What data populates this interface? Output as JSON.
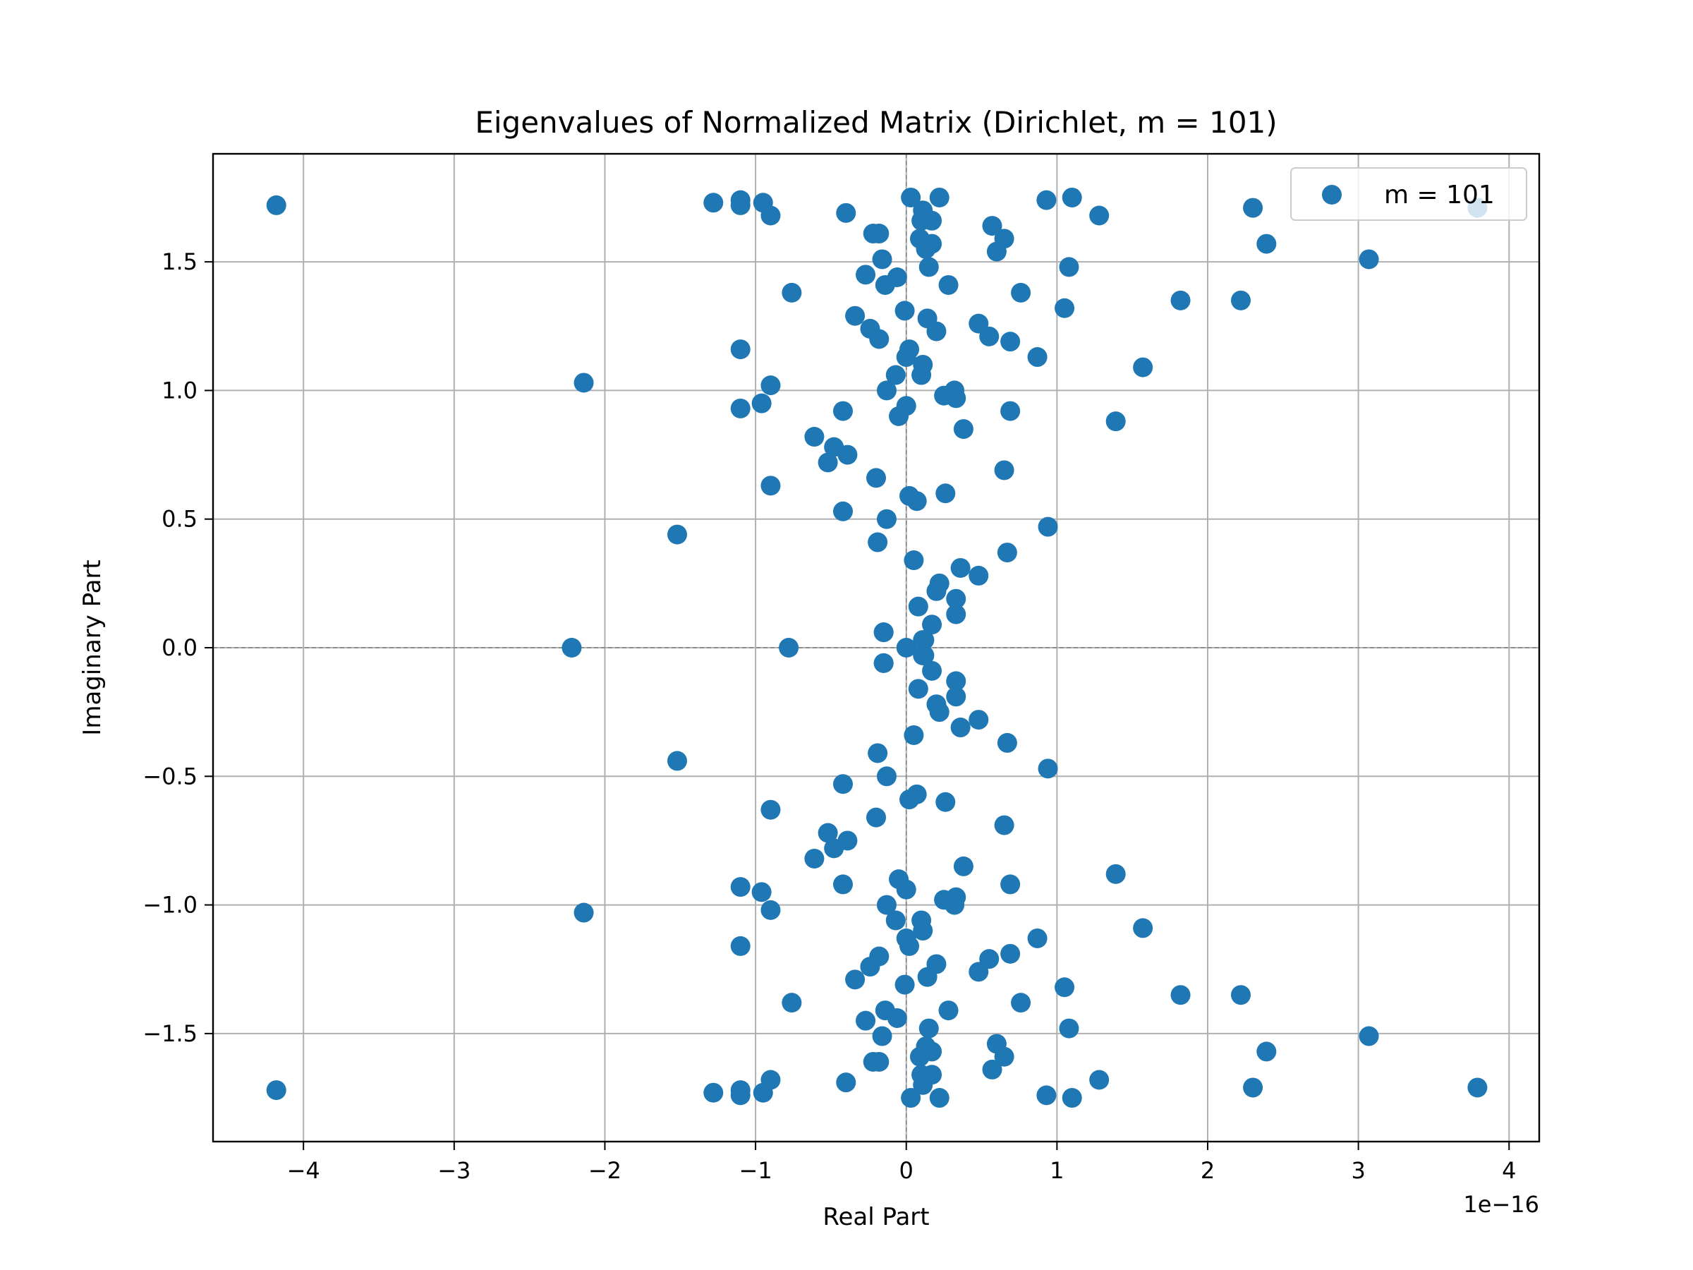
{
  "chart_data": {
    "type": "scatter",
    "title": "Eigenvalues of Normalized Matrix (Dirichlet, m = 101)",
    "xlabel": "Real Part",
    "ylabel": "Imaginary Part",
    "x_offset_text": "1e−16",
    "x_scale": 1e-16,
    "xlim": [
      -4.6,
      4.2
    ],
    "ylim": [
      -1.92,
      1.92
    ],
    "xticks": [
      -4,
      -3,
      -2,
      -1,
      0,
      1,
      2,
      3,
      4
    ],
    "xtick_labels": [
      "−4",
      "−3",
      "−2",
      "−1",
      "0",
      "1",
      "2",
      "3",
      "4"
    ],
    "yticks": [
      -1.5,
      -1.0,
      -0.5,
      0.0,
      0.5,
      1.0,
      1.5
    ],
    "ytick_labels": [
      "−1.5",
      "−1.0",
      "−0.5",
      "0.0",
      "0.5",
      "1.0",
      "1.5"
    ],
    "grid": true,
    "zero_lines": true,
    "legend_position": "top-right",
    "colors": {
      "series": "#1f77b4",
      "grid": "#b0b0b0",
      "zero_line": "#808080"
    },
    "series": [
      {
        "name": "m = 101",
        "points": [
          [
            -4.18,
            1.72
          ],
          [
            -2.22,
            0.0
          ],
          [
            -2.14,
            1.03
          ],
          [
            -1.52,
            0.44
          ],
          [
            -1.28,
            1.73
          ],
          [
            -1.1,
            1.74
          ],
          [
            -1.1,
            1.72
          ],
          [
            -1.1,
            1.16
          ],
          [
            -1.1,
            0.93
          ],
          [
            -0.95,
            1.73
          ],
          [
            -0.96,
            0.95
          ],
          [
            -0.9,
            1.68
          ],
          [
            -0.9,
            1.02
          ],
          [
            -0.9,
            0.63
          ],
          [
            -0.78,
            0.0
          ],
          [
            -0.76,
            1.38
          ],
          [
            -0.61,
            0.82
          ],
          [
            -0.52,
            0.72
          ],
          [
            -0.48,
            0.78
          ],
          [
            -0.4,
            1.69
          ],
          [
            -0.42,
            0.92
          ],
          [
            -0.42,
            0.53
          ],
          [
            -0.39,
            0.75
          ],
          [
            -0.34,
            1.29
          ],
          [
            -0.27,
            1.45
          ],
          [
            -0.24,
            1.24
          ],
          [
            -0.22,
            1.61
          ],
          [
            -0.2,
            0.66
          ],
          [
            -0.19,
            0.41
          ],
          [
            -0.18,
            1.2
          ],
          [
            -0.18,
            1.61
          ],
          [
            -0.16,
            1.51
          ],
          [
            -0.15,
            0.06
          ],
          [
            -0.15,
            -0.06
          ],
          [
            -0.14,
            1.41
          ],
          [
            -0.13,
            0.5
          ],
          [
            -0.13,
            1.0
          ],
          [
            -0.07,
            1.06
          ],
          [
            -0.06,
            1.44
          ],
          [
            -0.05,
            0.9
          ],
          [
            -0.01,
            1.31
          ],
          [
            0.0,
            1.13
          ],
          [
            0.0,
            0.94
          ],
          [
            0.0,
            0.0
          ],
          [
            0.02,
            1.16
          ],
          [
            0.02,
            0.59
          ],
          [
            0.03,
            1.75
          ],
          [
            0.05,
            0.34
          ],
          [
            0.07,
            0.57
          ],
          [
            0.08,
            0.16
          ],
          [
            0.09,
            1.59
          ],
          [
            0.1,
            1.66
          ],
          [
            0.1,
            1.06
          ],
          [
            0.11,
            1.7
          ],
          [
            0.11,
            1.1
          ],
          [
            0.11,
            0.03
          ],
          [
            0.12,
            -0.03
          ],
          [
            0.13,
            1.55
          ],
          [
            0.14,
            1.28
          ],
          [
            0.15,
            1.48
          ],
          [
            0.17,
            1.66
          ],
          [
            0.17,
            1.57
          ],
          [
            0.17,
            0.09
          ],
          [
            0.2,
            1.23
          ],
          [
            0.2,
            0.22
          ],
          [
            0.22,
            1.75
          ],
          [
            0.22,
            0.25
          ],
          [
            0.25,
            0.98
          ],
          [
            0.26,
            0.6
          ],
          [
            0.28,
            1.41
          ],
          [
            0.32,
            1.0
          ],
          [
            0.33,
            0.97
          ],
          [
            0.33,
            0.19
          ],
          [
            0.33,
            0.13
          ],
          [
            0.36,
            0.31
          ],
          [
            0.38,
            0.85
          ],
          [
            0.48,
            1.26
          ],
          [
            0.48,
            0.28
          ],
          [
            0.55,
            1.21
          ],
          [
            0.57,
            1.64
          ],
          [
            0.6,
            1.54
          ],
          [
            0.65,
            1.59
          ],
          [
            0.65,
            0.69
          ],
          [
            0.67,
            0.37
          ],
          [
            0.69,
            1.19
          ],
          [
            0.69,
            0.92
          ],
          [
            0.76,
            1.38
          ],
          [
            0.87,
            1.13
          ],
          [
            0.93,
            1.74
          ],
          [
            0.94,
            0.47
          ],
          [
            1.05,
            1.32
          ],
          [
            1.08,
            1.48
          ],
          [
            1.1,
            1.75
          ],
          [
            1.28,
            1.68
          ],
          [
            1.39,
            0.88
          ],
          [
            1.57,
            1.09
          ],
          [
            1.82,
            1.35
          ],
          [
            2.22,
            1.35
          ],
          [
            2.3,
            1.71
          ],
          [
            2.39,
            1.57
          ],
          [
            3.07,
            1.51
          ],
          [
            3.79,
            1.71
          ]
        ]
      }
    ]
  }
}
